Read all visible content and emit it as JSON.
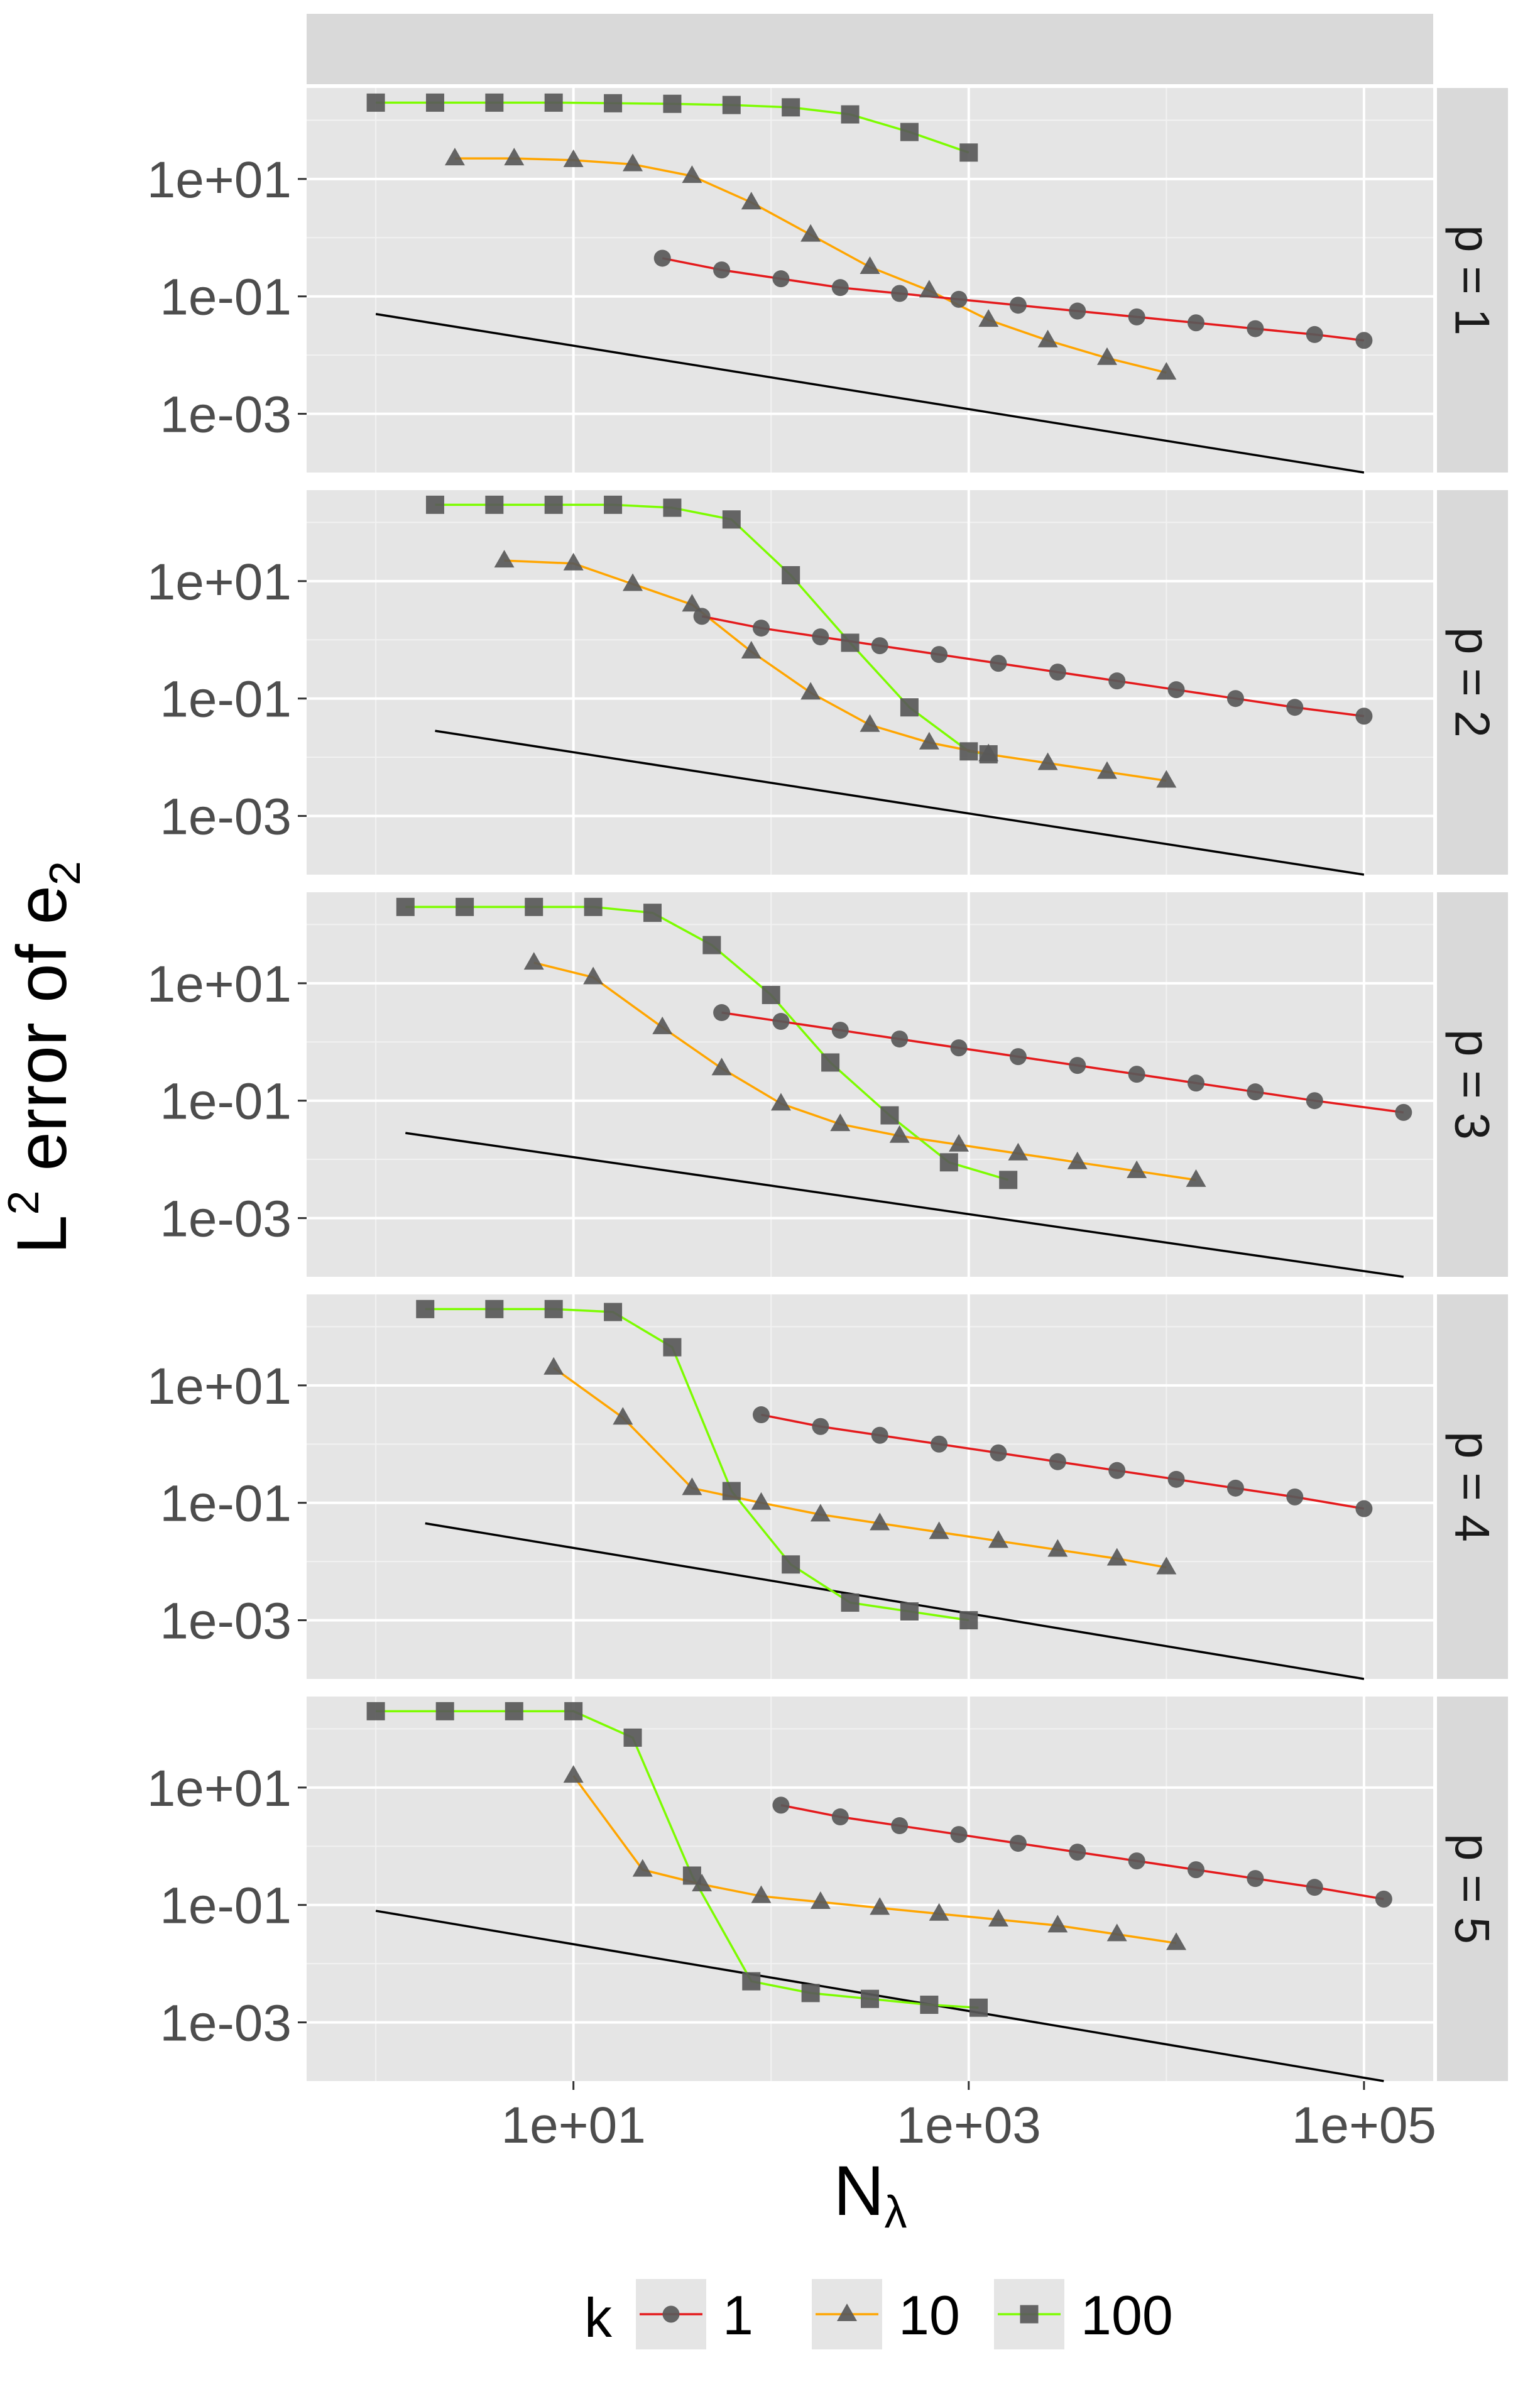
{
  "chart_data": {
    "type": "line",
    "title": "",
    "xlabel": "N",
    "xlabel_sub": "λ",
    "ylabel_prefix": "L",
    "ylabel_sup": "2",
    "ylabel_main": " error of e",
    "ylabel_sub": "2",
    "x_scale": "log10",
    "y_scale": "log10",
    "xlim_log10": [
      -0.35,
      5.35
    ],
    "ylim_log10": [
      -4.0,
      2.55
    ],
    "x_ticks": [
      {
        "value_log10": 1,
        "label": "1e+01"
      },
      {
        "value_log10": 3,
        "label": "1e+03"
      },
      {
        "value_log10": 5,
        "label": "1e+05"
      }
    ],
    "y_ticks": [
      {
        "value_log10": 1,
        "label": "1e+01"
      },
      {
        "value_log10": -1,
        "label": "1e-01"
      },
      {
        "value_log10": -3,
        "label": "1e-03"
      }
    ],
    "legend": {
      "title": "k",
      "position": "bottom",
      "entries": [
        {
          "label": "1",
          "series": "k1"
        },
        {
          "label": "10",
          "series": "k10"
        },
        {
          "label": "100",
          "series": "k100"
        }
      ]
    },
    "series_styles": {
      "k1": {
        "color": "#e41a1c",
        "shape": "circle"
      },
      "k10": {
        "color": "#ffa500",
        "shape": "triangle"
      },
      "k100": {
        "color": "#7cfc00",
        "shape": "square"
      },
      "ref": {
        "color": "#000000"
      }
    },
    "point_color": "#595959",
    "panels": [
      {
        "label": "p = 1",
        "series": {
          "k1": {
            "x_log10": [
              1.45,
              1.75,
              2.05,
              2.35,
              2.65,
              2.95,
              3.25,
              3.55,
              3.85,
              4.15,
              4.45,
              4.75,
              5.0
            ],
            "y_log10": [
              -0.35,
              -0.55,
              -0.7,
              -0.85,
              -0.95,
              -1.05,
              -1.15,
              -1.25,
              -1.35,
              -1.45,
              -1.55,
              -1.65,
              -1.75
            ]
          },
          "k10": {
            "x_log10": [
              0.4,
              0.7,
              1.0,
              1.3,
              1.6,
              1.9,
              2.2,
              2.5,
              2.8,
              3.1,
              3.4,
              3.7,
              4.0
            ],
            "y_log10": [
              1.35,
              1.35,
              1.32,
              1.25,
              1.05,
              0.6,
              0.05,
              -0.5,
              -0.9,
              -1.4,
              -1.75,
              -2.05,
              -2.3
            ]
          },
          "k100": {
            "x_log10": [
              0.0,
              0.3,
              0.6,
              0.9,
              1.2,
              1.5,
              1.8,
              2.1,
              2.4,
              2.7,
              3.0
            ],
            "y_log10": [
              2.3,
              2.3,
              2.3,
              2.3,
              2.29,
              2.28,
              2.26,
              2.22,
              2.1,
              1.8,
              1.45
            ]
          },
          "ref": {
            "x_log10": [
              0.0,
              5.0
            ],
            "y_log10": [
              -1.3,
              -4.0
            ]
          }
        }
      },
      {
        "label": "p = 2",
        "series": {
          "k1": {
            "x_log10": [
              1.65,
              1.95,
              2.25,
              2.55,
              2.85,
              3.15,
              3.45,
              3.75,
              4.05,
              4.35,
              4.65,
              5.0
            ],
            "y_log10": [
              0.4,
              0.2,
              0.05,
              -0.1,
              -0.25,
              -0.4,
              -0.55,
              -0.7,
              -0.85,
              -1.0,
              -1.15,
              -1.3
            ]
          },
          "k10": {
            "x_log10": [
              0.65,
              1.0,
              1.3,
              1.6,
              1.9,
              2.2,
              2.5,
              2.8,
              3.1,
              3.4,
              3.7,
              4.0
            ],
            "y_log10": [
              1.35,
              1.3,
              0.95,
              0.6,
              -0.2,
              -0.9,
              -1.45,
              -1.75,
              -1.95,
              -2.1,
              -2.25,
              -2.4
            ]
          },
          "k100": {
            "x_log10": [
              0.3,
              0.6,
              0.9,
              1.2,
              1.5,
              1.8,
              2.1,
              2.4,
              2.7,
              3.0,
              3.1
            ],
            "y_log10": [
              2.3,
              2.3,
              2.3,
              2.3,
              2.25,
              2.05,
              1.1,
              -0.05,
              -1.15,
              -1.9,
              -1.95
            ]
          },
          "ref": {
            "x_log10": [
              0.3,
              5.0
            ],
            "y_log10": [
              -1.55,
              -4.0
            ]
          }
        }
      },
      {
        "label": "p = 3",
        "series": {
          "k1": {
            "x_log10": [
              1.75,
              2.05,
              2.35,
              2.65,
              2.95,
              3.25,
              3.55,
              3.85,
              4.15,
              4.45,
              4.75,
              5.2
            ],
            "y_log10": [
              0.5,
              0.35,
              0.2,
              0.05,
              -0.1,
              -0.25,
              -0.4,
              -0.55,
              -0.7,
              -0.85,
              -1.0,
              -1.2
            ]
          },
          "k10": {
            "x_log10": [
              0.8,
              1.1,
              1.45,
              1.75,
              2.05,
              2.35,
              2.65,
              2.95,
              3.25,
              3.55,
              3.85,
              4.15
            ],
            "y_log10": [
              1.35,
              1.1,
              0.25,
              -0.45,
              -1.05,
              -1.4,
              -1.6,
              -1.75,
              -1.9,
              -2.05,
              -2.2,
              -2.35
            ]
          },
          "k100": {
            "x_log10": [
              0.15,
              0.45,
              0.8,
              1.1,
              1.4,
              1.7,
              2.0,
              2.3,
              2.6,
              2.9,
              3.2
            ],
            "y_log10": [
              2.3,
              2.3,
              2.3,
              2.3,
              2.2,
              1.65,
              0.8,
              -0.35,
              -1.25,
              -2.05,
              -2.35
            ]
          },
          "ref": {
            "x_log10": [
              0.15,
              5.2
            ],
            "y_log10": [
              -1.55,
              -4.0
            ]
          }
        }
      },
      {
        "label": "p = 4",
        "series": {
          "k1": {
            "x_log10": [
              1.95,
              2.25,
              2.55,
              2.85,
              3.15,
              3.45,
              3.75,
              4.05,
              4.35,
              4.65,
              5.0
            ],
            "y_log10": [
              0.5,
              0.3,
              0.15,
              0.0,
              -0.15,
              -0.3,
              -0.45,
              -0.6,
              -0.75,
              -0.9,
              -1.1
            ]
          },
          "k10": {
            "x_log10": [
              0.9,
              1.25,
              1.6,
              1.95,
              2.25,
              2.55,
              2.85,
              3.15,
              3.45,
              3.75,
              4.0
            ],
            "y_log10": [
              1.3,
              0.45,
              -0.75,
              -1.0,
              -1.2,
              -1.35,
              -1.5,
              -1.65,
              -1.8,
              -1.95,
              -2.1
            ]
          },
          "k100": {
            "x_log10": [
              0.25,
              0.6,
              0.9,
              1.2,
              1.5,
              1.8,
              2.1,
              2.4,
              2.7,
              3.0
            ],
            "y_log10": [
              2.3,
              2.3,
              2.3,
              2.25,
              1.65,
              -0.8,
              -2.05,
              -2.7,
              -2.85,
              -3.0
            ]
          },
          "ref": {
            "x_log10": [
              0.25,
              5.0
            ],
            "y_log10": [
              -1.35,
              -4.0
            ]
          }
        }
      },
      {
        "label": "p = 5",
        "series": {
          "k1": {
            "x_log10": [
              2.05,
              2.35,
              2.65,
              2.95,
              3.25,
              3.55,
              3.85,
              4.15,
              4.45,
              4.75,
              5.1
            ],
            "y_log10": [
              0.7,
              0.5,
              0.35,
              0.2,
              0.05,
              -0.1,
              -0.25,
              -0.4,
              -0.55,
              -0.7,
              -0.9
            ]
          },
          "k10": {
            "x_log10": [
              1.0,
              1.35,
              1.65,
              1.95,
              2.25,
              2.55,
              2.85,
              3.15,
              3.45,
              3.75,
              4.05
            ],
            "y_log10": [
              1.2,
              -0.4,
              -0.65,
              -0.85,
              -0.95,
              -1.05,
              -1.15,
              -1.25,
              -1.35,
              -1.5,
              -1.65
            ]
          },
          "k100": {
            "x_log10": [
              0.0,
              0.35,
              0.7,
              1.0,
              1.3,
              1.6,
              1.9,
              2.2,
              2.5,
              2.8,
              3.05
            ],
            "y_log10": [
              2.3,
              2.3,
              2.3,
              2.3,
              1.85,
              -0.5,
              -2.3,
              -2.5,
              -2.6,
              -2.7,
              -2.75
            ]
          },
          "ref": {
            "x_log10": [
              0.0,
              5.1
            ],
            "y_log10": [
              -1.1,
              -4.0
            ]
          }
        }
      }
    ]
  }
}
